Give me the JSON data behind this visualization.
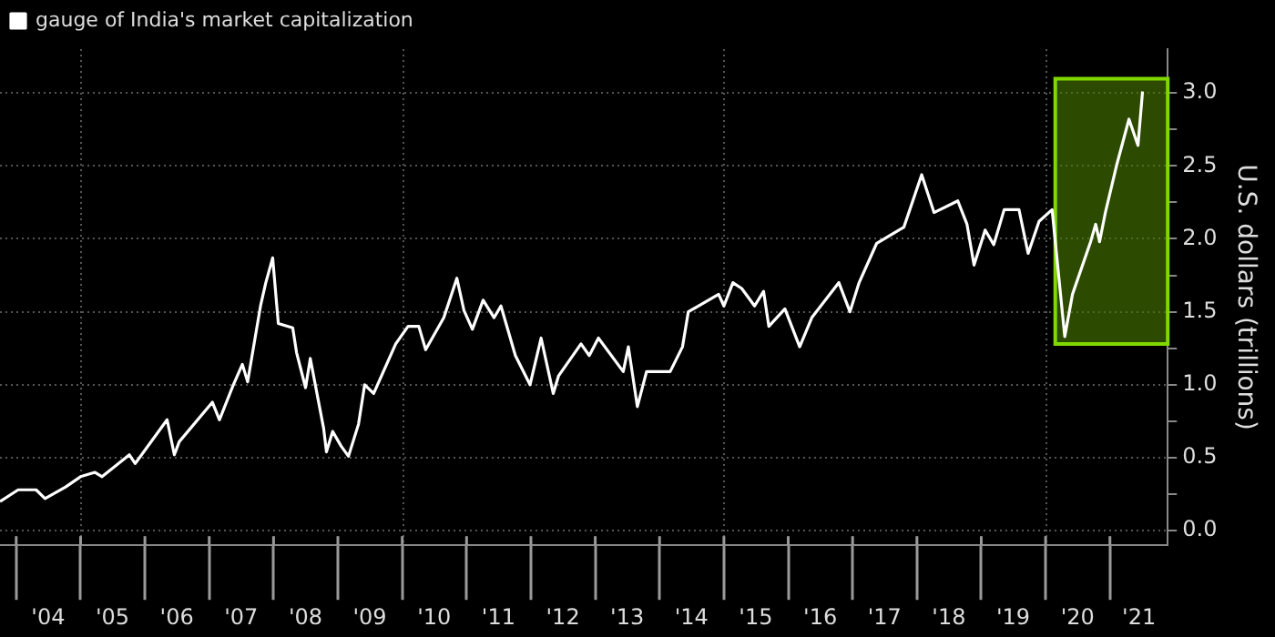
{
  "chart_data": {
    "type": "line",
    "ylabel": "U.S. dollars (trillions)",
    "legend": "top left",
    "grid": true,
    "marker": "none",
    "line_style": "solid",
    "xlim": [
      "2003-10-01",
      "2021-11-25"
    ],
    "ylim": [
      -0.1,
      3.3
    ],
    "xticks": [
      {
        "value": "2004-01-01",
        "label": null
      },
      {
        "value": "2004-07-01",
        "label": "'04"
      },
      {
        "value": "2005-01-01",
        "label": null
      },
      {
        "value": "2005-07-01",
        "label": "'05"
      },
      {
        "value": "2006-01-01",
        "label": null
      },
      {
        "value": "2006-07-01",
        "label": "'06"
      },
      {
        "value": "2007-01-01",
        "label": null
      },
      {
        "value": "2007-07-01",
        "label": "'07"
      },
      {
        "value": "2008-01-01",
        "label": null
      },
      {
        "value": "2008-07-01",
        "label": "'08"
      },
      {
        "value": "2009-01-01",
        "label": null
      },
      {
        "value": "2009-07-01",
        "label": "'09"
      },
      {
        "value": "2010-01-01",
        "label": null
      },
      {
        "value": "2010-07-01",
        "label": "'10"
      },
      {
        "value": "2011-01-01",
        "label": null
      },
      {
        "value": "2011-07-01",
        "label": "'11"
      },
      {
        "value": "2012-01-01",
        "label": null
      },
      {
        "value": "2012-07-01",
        "label": "'12"
      },
      {
        "value": "2013-01-01",
        "label": null
      },
      {
        "value": "2013-07-01",
        "label": "'13"
      },
      {
        "value": "2014-01-01",
        "label": null
      },
      {
        "value": "2014-07-01",
        "label": "'14"
      },
      {
        "value": "2015-01-01",
        "label": null
      },
      {
        "value": "2015-07-01",
        "label": "'15"
      },
      {
        "value": "2016-01-01",
        "label": null
      },
      {
        "value": "2016-07-01",
        "label": "'16"
      },
      {
        "value": "2017-01-01",
        "label": null
      },
      {
        "value": "2017-07-01",
        "label": "'17"
      },
      {
        "value": "2018-01-01",
        "label": null
      },
      {
        "value": "2018-07-01",
        "label": "'18"
      },
      {
        "value": "2019-01-01",
        "label": null
      },
      {
        "value": "2019-07-01",
        "label": "'19"
      },
      {
        "value": "2020-01-01",
        "label": null
      },
      {
        "value": "2020-07-01",
        "label": "'20"
      },
      {
        "value": "2021-01-01",
        "label": null
      },
      {
        "value": "2021-06-15",
        "label": "'21"
      }
    ],
    "yticks": [
      {
        "value": 0,
        "label": "0.0"
      },
      {
        "value": 0.25,
        "label": null
      },
      {
        "value": 0.5,
        "label": "0.5"
      },
      {
        "value": 0.75,
        "label": null
      },
      {
        "value": 1,
        "label": "1.0"
      },
      {
        "value": 1.25,
        "label": null
      },
      {
        "value": 1.5,
        "label": "1.5"
      },
      {
        "value": 1.75,
        "label": null
      },
      {
        "value": 2,
        "label": "2.0"
      },
      {
        "value": 2.25,
        "label": null
      },
      {
        "value": 2.5,
        "label": "2.5"
      },
      {
        "value": 2.75,
        "label": null
      },
      {
        "value": 3,
        "label": "3.0"
      }
    ],
    "bands": [
      {
        "axis": "x",
        "from": "2020-02-25",
        "to": "2021-11-25",
        "color": "#4a7d00"
      }
    ],
    "series": [
      {
        "name": "gauge of India's market capitalization",
        "color": "#ffffff",
        "x": [
          "2003-10-01",
          "2004-01-12",
          "2004-04-23",
          "2004-06-13",
          "2004-10-08",
          "2005-01-01",
          "2005-03-24",
          "2005-05-03",
          "2005-10-05",
          "2005-11-07",
          "2006-05-07",
          "2006-06-17",
          "2006-07-15",
          "2007-01-19",
          "2007-02-28",
          "2007-05-18",
          "2007-07-08",
          "2007-08-07",
          "2007-10-19",
          "2007-11-18",
          "2007-12-27",
          "2008-01-28",
          "2008-04-19",
          "2008-05-11",
          "2008-07-01",
          "2008-07-28",
          "2008-10-12",
          "2008-10-28",
          "2008-12-02",
          "2009-01-19",
          "2009-03-02",
          "2009-04-28",
          "2009-06-02",
          "2009-07-23",
          "2009-11-25",
          "2010-02-03",
          "2010-04-05",
          "2010-05-14",
          "2010-08-25",
          "2010-11-07",
          "2010-12-17",
          "2011-02-03",
          "2011-04-05",
          "2011-06-06",
          "2011-07-15",
          "2011-10-05",
          "2011-12-27",
          "2012-02-28",
          "2012-05-07",
          "2012-06-06",
          "2012-10-12",
          "2012-11-28",
          "2013-01-19",
          "2013-06-09",
          "2013-07-08",
          "2013-08-28",
          "2013-10-19",
          "2014-03-02",
          "2014-05-11",
          "2014-06-13",
          "2014-12-02",
          "2015-01-01",
          "2015-02-21",
          "2015-04-12",
          "2015-06-24",
          "2015-08-14",
          "2015-09-13",
          "2015-12-13",
          "2016-03-06",
          "2016-05-14",
          "2016-10-15",
          "2016-12-17",
          "2017-02-07",
          "2017-05-18",
          "2017-10-19",
          "2018-01-28",
          "2018-04-08",
          "2018-08-21",
          "2018-10-12",
          "2018-11-21",
          "2019-01-23",
          "2019-03-13",
          "2019-05-11",
          "2019-08-03",
          "2019-09-24",
          "2019-11-25",
          "2020-02-07",
          "2020-04-19",
          "2020-06-02",
          "2020-09-13",
          "2020-10-12",
          "2020-11-03",
          "2020-12-06",
          "2021-02-07",
          "2021-04-19",
          "2021-06-09",
          "2021-07-05"
        ],
        "values": [
          0.2,
          0.28,
          0.28,
          0.22,
          0.3,
          0.37,
          0.4,
          0.37,
          0.52,
          0.46,
          0.76,
          0.52,
          0.61,
          0.88,
          0.76,
          1.0,
          1.14,
          1.02,
          1.54,
          1.7,
          1.87,
          1.42,
          1.39,
          1.22,
          0.98,
          1.18,
          0.7,
          0.54,
          0.68,
          0.58,
          0.51,
          0.73,
          1.0,
          0.94,
          1.28,
          1.4,
          1.4,
          1.24,
          1.46,
          1.73,
          1.51,
          1.38,
          1.58,
          1.46,
          1.54,
          1.2,
          1.0,
          1.32,
          0.94,
          1.06,
          1.28,
          1.2,
          1.32,
          1.09,
          1.26,
          0.85,
          1.09,
          1.09,
          1.26,
          1.5,
          1.62,
          1.54,
          1.7,
          1.66,
          1.54,
          1.64,
          1.4,
          1.52,
          1.26,
          1.46,
          1.7,
          1.5,
          1.7,
          1.97,
          2.08,
          2.44,
          2.18,
          2.26,
          2.1,
          1.82,
          2.06,
          1.96,
          2.2,
          2.2,
          1.9,
          2.12,
          2.2,
          1.33,
          1.62,
          1.98,
          2.1,
          1.98,
          2.18,
          2.5,
          2.82,
          2.64,
          3.01
        ]
      }
    ]
  }
}
